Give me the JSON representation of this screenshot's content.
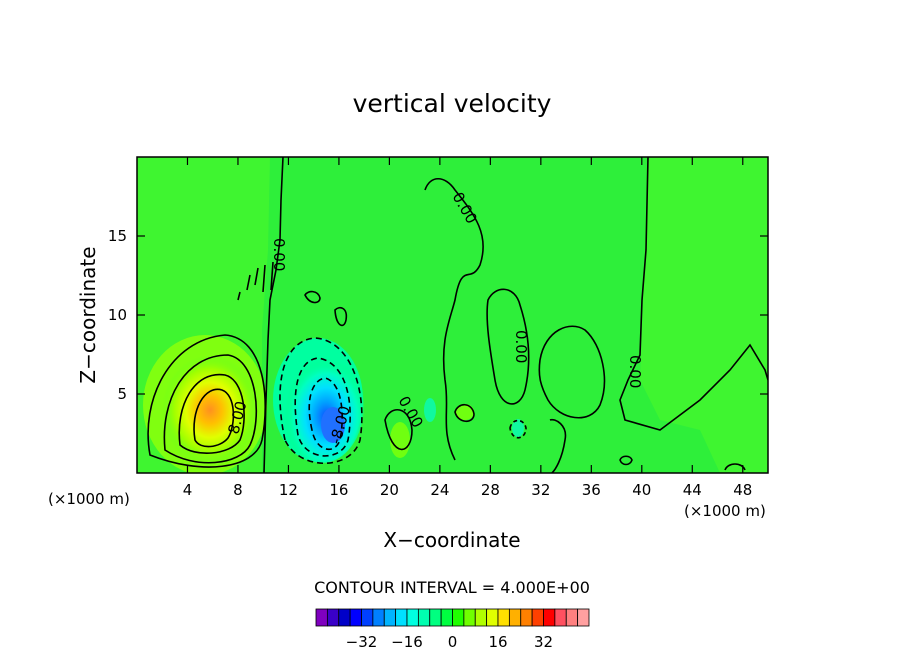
{
  "chart_data": {
    "type": "heatmap",
    "title": "vertical velocity",
    "xlabel": "X−coordinate",
    "ylabel": "Z−coordinate",
    "x_units": "(×1000 m)",
    "y_units": "(×1000 m)",
    "xlim": [
      0,
      50
    ],
    "ylim": [
      0,
      20
    ],
    "xticks": [
      4,
      8,
      12,
      16,
      20,
      24,
      28,
      32,
      36,
      40,
      44,
      48
    ],
    "yticks": [
      5,
      10,
      15
    ],
    "contour_interval_text": "CONTOUR INTERVAL = 4.000E+00",
    "contour_labels": [
      "0.00",
      "0.00",
      "0.00",
      "0.00",
      "0.00",
      "8.00",
      "-8.00"
    ],
    "colorbar": {
      "tick_values": [
        -32,
        -16,
        0,
        16,
        32
      ],
      "tick_labels": [
        "−32",
        "−16",
        "0",
        "16",
        "32"
      ],
      "levels": [
        -44,
        -40,
        -36,
        -32,
        -28,
        -24,
        -20,
        -16,
        -12,
        -8,
        -4,
        0,
        4,
        8,
        12,
        16,
        20,
        24,
        28,
        32,
        36,
        40,
        44
      ],
      "colors": [
        "#7f00bf",
        "#3a00c8",
        "#0000c8",
        "#0000ff",
        "#0040ff",
        "#0080ff",
        "#00b4ff",
        "#00e0ff",
        "#00ffe0",
        "#00ffb0",
        "#00ff80",
        "#00ff40",
        "#20ff00",
        "#70ff00",
        "#b0ff00",
        "#e0ff00",
        "#ffe000",
        "#ffb000",
        "#ff8000",
        "#ff4000",
        "#ff0000",
        "#ff5060",
        "#ff8080",
        "#ffa0a0"
      ]
    },
    "features": [
      {
        "kind": "updraft",
        "x": 6,
        "z": 4,
        "max": 24
      },
      {
        "kind": "downdraft",
        "x": 15.5,
        "z": 3,
        "min": -24
      },
      {
        "kind": "background",
        "value": 0
      }
    ]
  }
}
